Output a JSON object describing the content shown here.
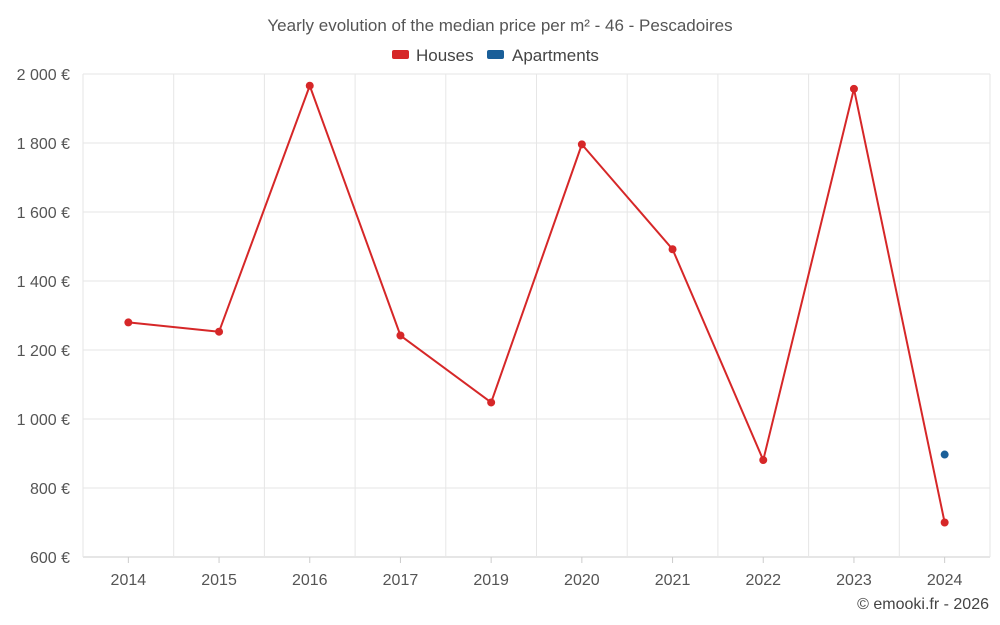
{
  "chart_data": {
    "type": "line",
    "title": "Yearly evolution of the median price per m² - 46 - Pescadoires",
    "categories": [
      "2014",
      "2015",
      "2016",
      "2017",
      "2019",
      "2020",
      "2021",
      "2022",
      "2023",
      "2024"
    ],
    "series": [
      {
        "name": "Houses",
        "color": "#d62728",
        "values": [
          1280,
          1253,
          1966,
          1242,
          1048,
          1796,
          1492,
          881,
          1957,
          700
        ]
      },
      {
        "name": "Apartments",
        "color": "#1a5f99",
        "values": [
          null,
          null,
          null,
          null,
          null,
          null,
          null,
          null,
          null,
          897
        ]
      }
    ],
    "yticks": [
      "600 €",
      "800 €",
      "1 000 €",
      "1 200 €",
      "1 400 €",
      "1 600 €",
      "1 800 €",
      "2 000 €"
    ],
    "ylim": [
      600,
      2000
    ],
    "xlabel": "",
    "ylabel": "",
    "grid": true,
    "legend_position": "top-center",
    "credit": "© emooki.fr - 2026"
  }
}
